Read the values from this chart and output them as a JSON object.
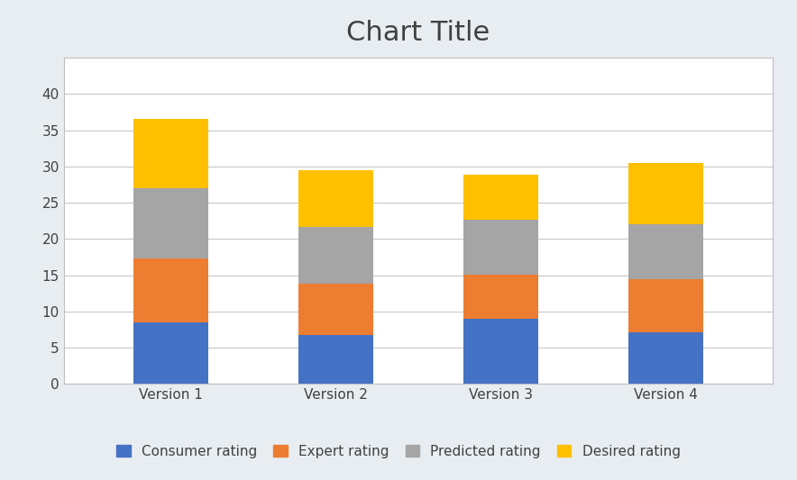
{
  "categories": [
    "Version 1",
    "Version 2",
    "Version 3",
    "Version 4"
  ],
  "series": {
    "Consumer rating": [
      8.5,
      6.8,
      9.0,
      7.1
    ],
    "Expert rating": [
      8.8,
      7.0,
      6.1,
      7.4
    ],
    "Predicted rating": [
      9.7,
      7.9,
      7.5,
      7.5
    ],
    "Desired rating": [
      9.5,
      7.8,
      6.2,
      8.5
    ]
  },
  "colors": {
    "Consumer rating": "#4472C4",
    "Expert rating": "#ED7D31",
    "Predicted rating": "#A5A5A5",
    "Desired rating": "#FFC000"
  },
  "title": "Chart Title",
  "title_fontsize": 22,
  "ylim": [
    0,
    45
  ],
  "yticks": [
    0,
    5,
    10,
    15,
    20,
    25,
    30,
    35,
    40
  ],
  "bar_width": 0.45,
  "figure_bg": "#E8EDF2",
  "plot_bg": "#FFFFFF",
  "grid_color": "#C8C8C8",
  "border_color": "#BFBFBF",
  "legend_fontsize": 11,
  "tick_fontsize": 11,
  "title_color": "#404040",
  "tick_color": "#404040"
}
